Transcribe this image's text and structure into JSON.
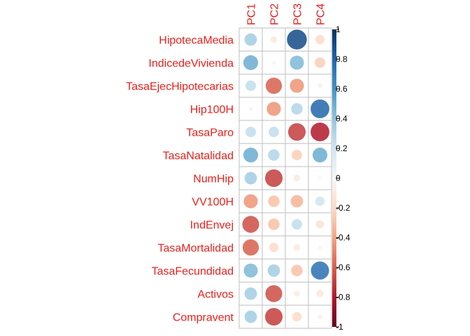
{
  "chart_data": {
    "type": "heatmap",
    "style": "corrplot-circle",
    "columns": [
      "PC1",
      "PC2",
      "PC3",
      "PC4"
    ],
    "rows": [
      "HipotecaMedia",
      "IndicedeVivienda",
      "TasaEjecHipotecarias",
      "Hip100H",
      "TasaParo",
      "TasaNatalidad",
      "NumHip",
      "VV100H",
      "IndEnvej",
      "TasaMortalidad",
      "TasaFecundidad",
      "Activos",
      "Compravent"
    ],
    "values": [
      [
        0.35,
        -0.1,
        0.9,
        -0.2
      ],
      [
        0.5,
        0.03,
        0.45,
        -0.25
      ],
      [
        0.25,
        -0.6,
        -0.45,
        -0.05
      ],
      [
        0.03,
        -0.45,
        0.3,
        0.8
      ],
      [
        0.25,
        0.25,
        -0.7,
        -0.8
      ],
      [
        0.5,
        0.3,
        -0.25,
        0.5
      ],
      [
        0.35,
        -0.7,
        -0.1,
        -0.03
      ],
      [
        -0.45,
        -0.3,
        -0.35,
        0.2
      ],
      [
        -0.65,
        -0.3,
        0.25,
        -0.15
      ],
      [
        -0.6,
        -0.2,
        -0.1,
        -0.03
      ],
      [
        0.45,
        0.35,
        -0.3,
        0.75
      ],
      [
        0.35,
        -0.65,
        -0.08,
        -0.12
      ],
      [
        0.35,
        -0.7,
        -0.2,
        -0.05
      ]
    ],
    "colorbar": {
      "ticks": [
        "1",
        "0.8",
        "0.6",
        "0.4",
        "0.2",
        "0",
        "-0.2",
        "-0.4",
        "-0.6",
        "-0.8",
        "-1"
      ],
      "range": [
        -1,
        1
      ]
    },
    "colors": {
      "negative_end": "#67001f",
      "mid": "#f7f7f7",
      "positive_end": "#053061",
      "label": "#e8211d"
    }
  }
}
